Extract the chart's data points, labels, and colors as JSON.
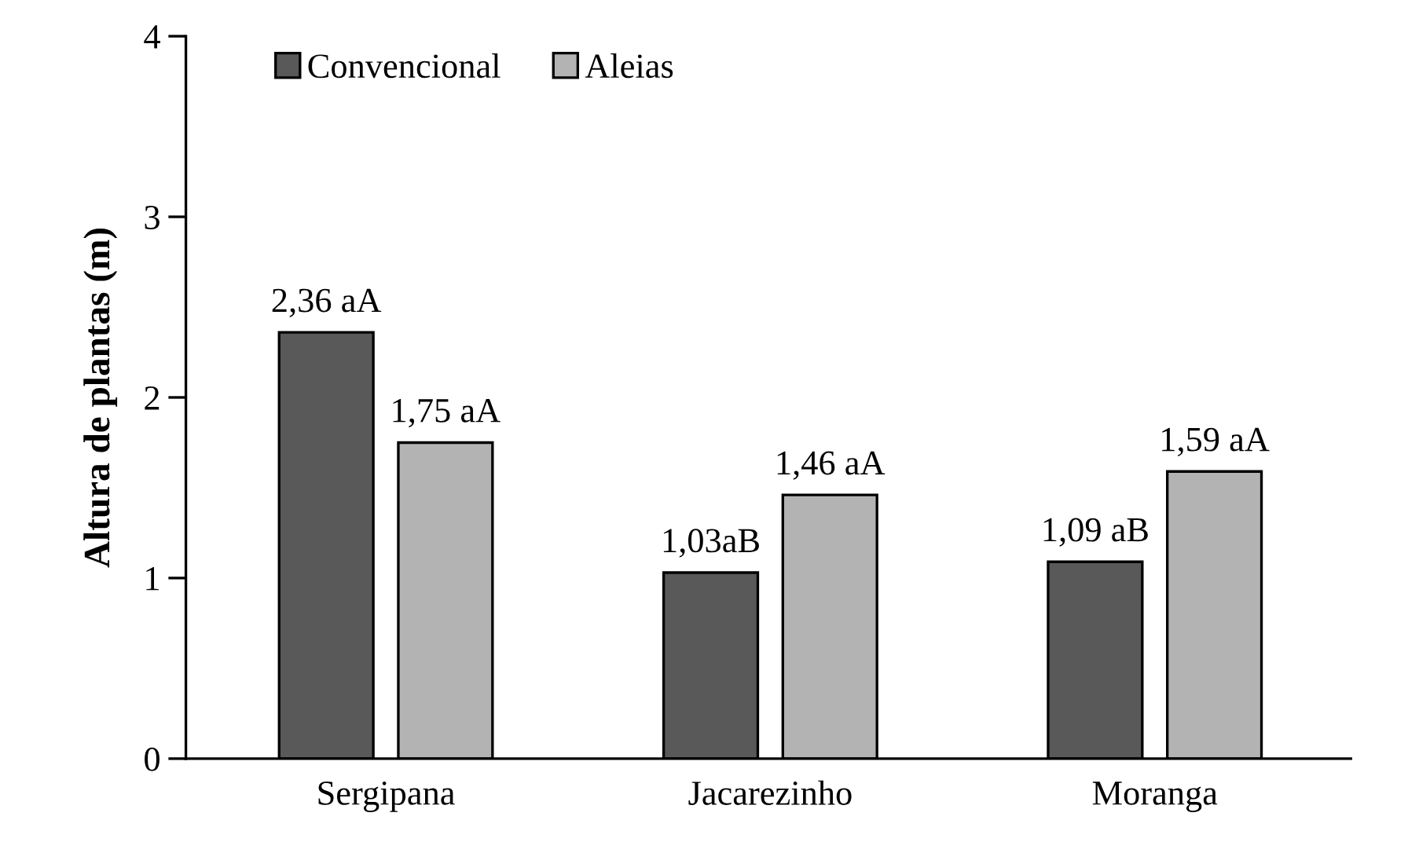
{
  "chart_data": {
    "type": "bar",
    "ylabel": "Altura de plantas (m)",
    "categories": [
      "Sergipana",
      "Jacarezinho",
      "Moranga"
    ],
    "series": [
      {
        "name": "Convencional",
        "color": "#595959",
        "values": [
          2.36,
          1.03,
          1.09
        ],
        "value_labels": [
          "2,36 aA",
          "1,03aB",
          "1,09 aB"
        ]
      },
      {
        "name": "Aleias",
        "color": "#b3b3b3",
        "values": [
          1.75,
          1.46,
          1.59
        ],
        "value_labels": [
          "1,75 aA",
          "1,46 aA",
          "1,59 aA"
        ]
      }
    ],
    "ylim": [
      0,
      4
    ],
    "yticks": [
      0,
      1,
      2,
      3,
      4
    ],
    "grid": false,
    "legend": "top left"
  }
}
